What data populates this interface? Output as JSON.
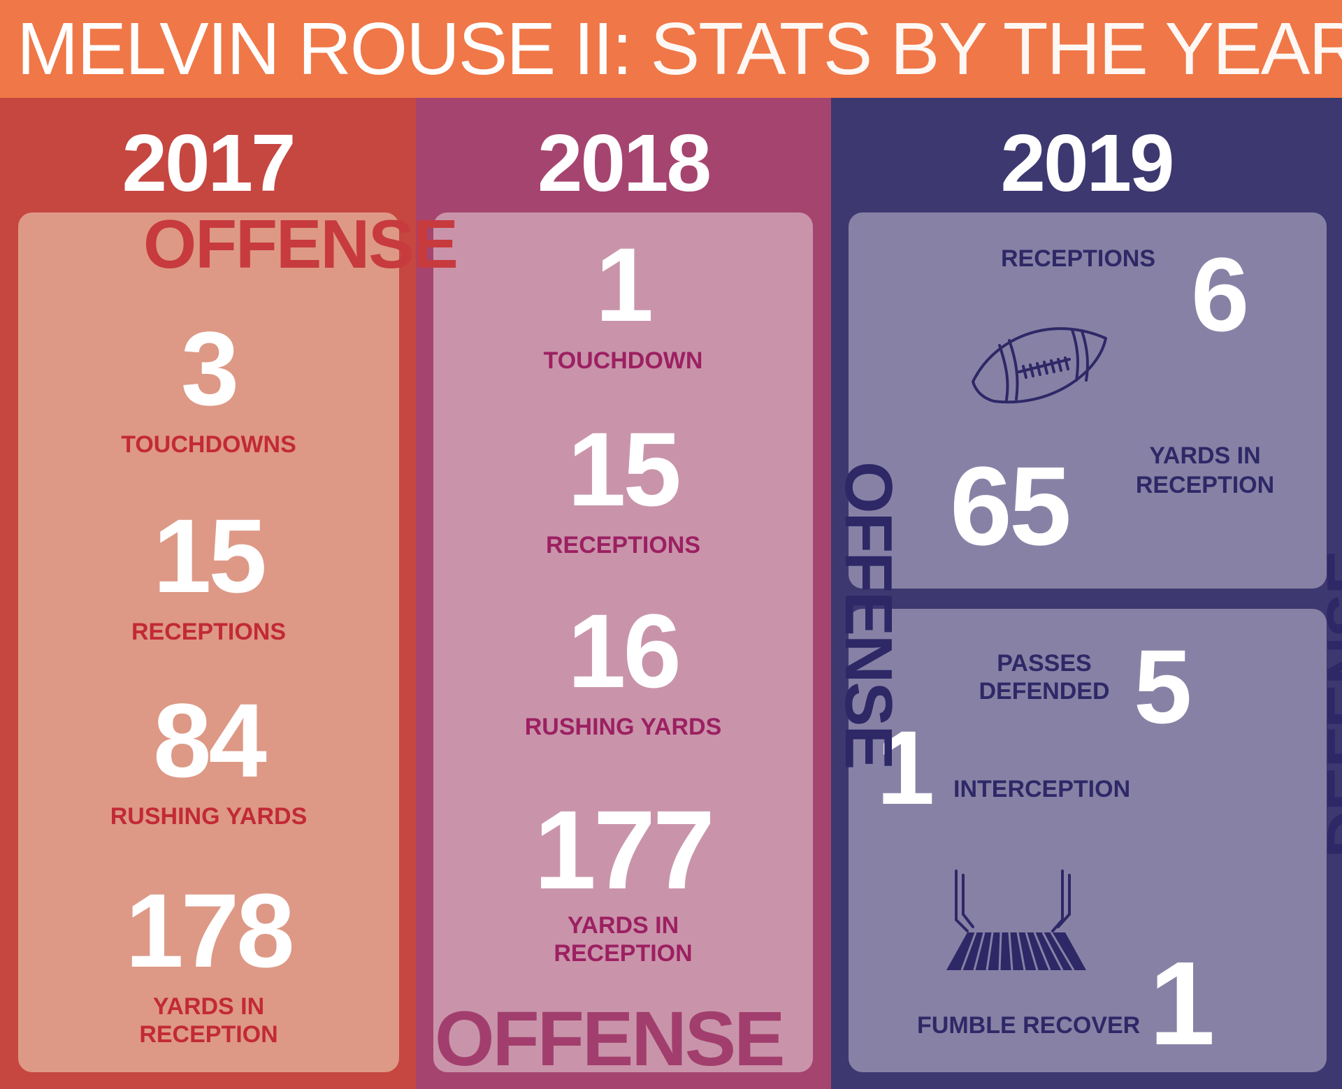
{
  "header": {
    "title_strong": "MELVIN ROUSE II:",
    "title_light": "STATS BY THE YEARS"
  },
  "years": {
    "y2017": {
      "year": "2017",
      "section": "OFFENSE",
      "stats": [
        {
          "value": "3",
          "label": "TOUCHDOWNS"
        },
        {
          "value": "15",
          "label": "RECEPTIONS"
        },
        {
          "value": "84",
          "label": "RUSHING YARDS"
        },
        {
          "value": "178",
          "label_line1": "YARDS IN",
          "label_line2": "RECEPTION"
        }
      ]
    },
    "y2018": {
      "year": "2018",
      "section": "OFFENSE",
      "stats": [
        {
          "value": "1",
          "label": "TOUCHDOWN"
        },
        {
          "value": "15",
          "label": "RECEPTIONS"
        },
        {
          "value": "16",
          "label": "RUSHING YARDS"
        },
        {
          "value": "177",
          "label_line1": "YARDS IN",
          "label_line2": "RECEPTION"
        }
      ]
    },
    "y2019": {
      "year": "2019",
      "offense": {
        "section": "OFFENSE",
        "receptions": {
          "value": "6",
          "label": "RECEPTIONS"
        },
        "yards": {
          "value": "65",
          "label_line1": "YARDS IN",
          "label_line2": "RECEPTION"
        },
        "icon": "football-icon"
      },
      "defense": {
        "section": "DEFENSE",
        "passes_defended": {
          "value": "5",
          "label_line1": "PASSES",
          "label_line2": "DEFENDED"
        },
        "interception": {
          "value": "1",
          "label": "INTERCEPTION"
        },
        "fumble": {
          "value": "1",
          "label": "FUMBLE RECOVER"
        },
        "icon": "goalpost-icon"
      }
    }
  },
  "colors": {
    "header": "#f07747",
    "col_2017": "#c64640",
    "col_2018": "#a64470",
    "col_2019": "#3d3870",
    "card_2017": "#dd9986",
    "card_2018": "#c994aa",
    "card_2019": "#8782a5"
  }
}
